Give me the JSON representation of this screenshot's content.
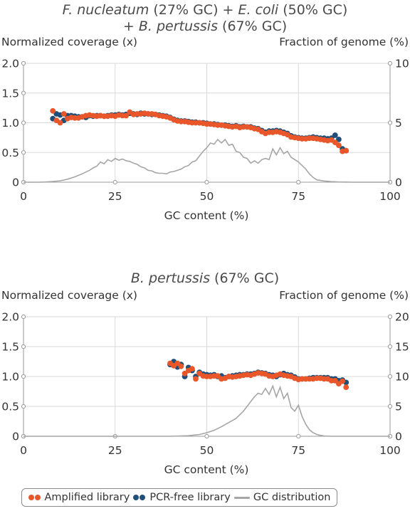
{
  "colors": {
    "amplified": "#e8562a",
    "pcr_free": "#1f4e79",
    "gc_distribution": "#a6a6a6",
    "grid": "#d9d9d9",
    "axis": "#9a9a9a"
  },
  "chart_data": [
    {
      "type": "scatter",
      "title_line1_parts": [
        {
          "text": "F. nucleatum",
          "italic": true
        },
        {
          "text": " (27% GC) + ",
          "italic": false
        },
        {
          "text": "E. coli",
          "italic": true
        },
        {
          "text": " (50% GC)",
          "italic": false
        }
      ],
      "title_line2_parts": [
        {
          "text": "+ ",
          "italic": false
        },
        {
          "text": "B. pertussis",
          "italic": true
        },
        {
          "text": " (67% GC)",
          "italic": false
        }
      ],
      "ylabel_left": "Normalized coverage (x)",
      "ylabel_right": "Fraction of genome (%)",
      "xlabel": "GC content (%)",
      "xlim": [
        0,
        100
      ],
      "x_ticks": [
        "0",
        "25",
        "50",
        "75",
        "100"
      ],
      "ylim_left": [
        0,
        2.0
      ],
      "y_ticks_left": [
        "0",
        "0.5",
        "1.0",
        "1.5",
        "2.0"
      ],
      "ylim_right": [
        0,
        10
      ],
      "y_ticks_right": [
        "0",
        "5",
        "10"
      ],
      "grid": true,
      "series": [
        {
          "name": "PCR-free library",
          "x": [
            8,
            9,
            10,
            11,
            12,
            13,
            14,
            15,
            16,
            17,
            18,
            19,
            20,
            21,
            22,
            23,
            24,
            25,
            26,
            27,
            28,
            29,
            30,
            31,
            32,
            33,
            34,
            35,
            36,
            37,
            38,
            39,
            40,
            41,
            42,
            43,
            44,
            45,
            46,
            47,
            48,
            49,
            50,
            51,
            52,
            53,
            54,
            55,
            56,
            57,
            58,
            59,
            60,
            61,
            62,
            63,
            64,
            65,
            66,
            67,
            68,
            69,
            70,
            71,
            72,
            73,
            74,
            75,
            76,
            77,
            78,
            79,
            80,
            81,
            82,
            83,
            84,
            85,
            86,
            87,
            88
          ],
          "y": [
            1.07,
            1.15,
            1.13,
            1.04,
            1.12,
            1.12,
            1.11,
            1.1,
            1.1,
            1.09,
            1.12,
            1.11,
            1.12,
            1.12,
            1.11,
            1.12,
            1.13,
            1.13,
            1.14,
            1.13,
            1.14,
            1.16,
            1.15,
            1.14,
            1.16,
            1.15,
            1.15,
            1.14,
            1.14,
            1.13,
            1.12,
            1.11,
            1.09,
            1.06,
            1.04,
            1.03,
            1.03,
            1.02,
            1.01,
            1.01,
            1.0,
            1.0,
            0.99,
            0.98,
            0.98,
            0.97,
            0.96,
            0.96,
            0.95,
            0.94,
            0.95,
            0.93,
            0.94,
            0.93,
            0.93,
            0.91,
            0.9,
            0.87,
            0.84,
            0.86,
            0.86,
            0.87,
            0.86,
            0.84,
            0.82,
            0.78,
            0.76,
            0.75,
            0.74,
            0.74,
            0.75,
            0.76,
            0.75,
            0.74,
            0.74,
            0.73,
            0.74,
            0.79,
            0.72,
            0.56,
            0.53
          ]
        },
        {
          "name": "Amplified library",
          "x": [
            8,
            9,
            10,
            11,
            12,
            13,
            14,
            15,
            16,
            17,
            18,
            19,
            20,
            21,
            22,
            23,
            24,
            25,
            26,
            27,
            28,
            29,
            30,
            31,
            32,
            33,
            34,
            35,
            36,
            37,
            38,
            39,
            40,
            41,
            42,
            43,
            44,
            45,
            46,
            47,
            48,
            49,
            50,
            51,
            52,
            53,
            54,
            55,
            56,
            57,
            58,
            59,
            60,
            61,
            62,
            63,
            64,
            65,
            66,
            67,
            68,
            69,
            70,
            71,
            72,
            73,
            74,
            75,
            76,
            77,
            78,
            79,
            80,
            81,
            82,
            83,
            84,
            85,
            86,
            87,
            88
          ],
          "y": [
            1.2,
            1.04,
            1.0,
            1.15,
            1.07,
            1.09,
            1.08,
            1.08,
            1.1,
            1.12,
            1.13,
            1.12,
            1.11,
            1.12,
            1.11,
            1.11,
            1.12,
            1.11,
            1.13,
            1.12,
            1.12,
            1.18,
            1.14,
            1.15,
            1.15,
            1.16,
            1.15,
            1.15,
            1.14,
            1.12,
            1.11,
            1.1,
            1.08,
            1.05,
            1.03,
            1.02,
            1.02,
            1.01,
            1.0,
            1.0,
            1.0,
            0.99,
            0.98,
            0.98,
            0.97,
            0.96,
            0.96,
            0.95,
            0.94,
            0.93,
            0.94,
            0.92,
            0.93,
            0.93,
            0.92,
            0.9,
            0.89,
            0.85,
            0.82,
            0.84,
            0.84,
            0.85,
            0.84,
            0.82,
            0.8,
            0.76,
            0.75,
            0.74,
            0.73,
            0.73,
            0.74,
            0.74,
            0.73,
            0.72,
            0.71,
            0.7,
            0.71,
            0.67,
            0.62,
            0.52,
            0.53
          ]
        },
        {
          "name": "GC distribution",
          "axis": "right",
          "x": [
            0,
            2,
            4,
            6,
            8,
            10,
            12,
            14,
            16,
            18,
            19,
            20,
            21,
            22,
            23,
            24,
            25,
            26,
            27,
            28,
            29,
            30,
            31,
            32,
            33,
            34,
            35,
            36,
            37,
            38,
            39,
            40,
            41,
            42,
            43,
            44,
            45,
            46,
            47,
            48,
            49,
            50,
            51,
            52,
            53,
            54,
            55,
            56,
            57,
            58,
            59,
            60,
            61,
            62,
            63,
            64,
            65,
            66,
            67,
            68,
            69,
            70,
            71,
            72,
            73,
            74,
            75,
            76,
            77,
            78,
            79,
            80,
            82,
            84,
            86,
            88,
            90,
            92,
            95,
            100
          ],
          "y": [
            0,
            0,
            0,
            0.02,
            0.06,
            0.12,
            0.25,
            0.45,
            0.7,
            1.0,
            1.2,
            1.35,
            1.7,
            1.55,
            1.9,
            1.75,
            2.0,
            1.85,
            1.95,
            1.8,
            1.75,
            1.6,
            1.5,
            1.3,
            1.2,
            1.0,
            0.95,
            0.8,
            0.75,
            0.75,
            0.7,
            0.85,
            0.9,
            1.0,
            1.1,
            1.3,
            1.4,
            1.7,
            1.8,
            2.2,
            2.6,
            2.9,
            3.3,
            3.2,
            3.6,
            3.3,
            3.6,
            3.1,
            3.2,
            2.6,
            2.5,
            2.1,
            2.0,
            1.6,
            1.8,
            1.6,
            1.9,
            2.0,
            1.9,
            2.8,
            2.3,
            2.9,
            2.4,
            2.6,
            2.1,
            1.9,
            1.7,
            1.4,
            1.1,
            0.7,
            0.4,
            0.2,
            0.1,
            0.05,
            0.02,
            0.01,
            0,
            0,
            0,
            0
          ]
        }
      ]
    },
    {
      "type": "scatter",
      "title_line1_parts": [
        {
          "text": "B. pertussis",
          "italic": true
        },
        {
          "text": " (67% GC)",
          "italic": false
        }
      ],
      "title_line2_parts": [],
      "ylabel_left": "Normalized coverage (x)",
      "ylabel_right": "Fraction of genome (%)",
      "xlabel": "GC content (%)",
      "xlim": [
        0,
        100
      ],
      "x_ticks": [
        "0",
        "25",
        "50",
        "75",
        "100"
      ],
      "ylim_left": [
        0,
        2.0
      ],
      "y_ticks_left": [
        "0",
        "0.5",
        "1.0",
        "1.5",
        "2.0"
      ],
      "ylim_right": [
        0,
        20
      ],
      "y_ticks_right": [
        "0",
        "5",
        "10",
        "15",
        "20"
      ],
      "grid": true,
      "series": [
        {
          "name": "PCR-free library",
          "x": [
            40,
            41,
            42,
            43,
            44,
            45,
            46,
            47,
            48,
            49,
            50,
            51,
            52,
            53,
            54,
            55,
            56,
            57,
            58,
            59,
            60,
            61,
            62,
            63,
            64,
            65,
            66,
            67,
            68,
            69,
            70,
            71,
            72,
            73,
            74,
            75,
            76,
            77,
            78,
            79,
            80,
            81,
            82,
            83,
            84,
            85,
            86,
            87,
            88
          ],
          "y": [
            1.2,
            1.25,
            1.16,
            1.2,
            1.0,
            1.15,
            1.1,
            1.0,
            1.07,
            1.04,
            1.03,
            1.02,
            1.03,
            1.0,
            1.01,
            0.98,
            1.0,
            1.01,
            1.02,
            1.03,
            1.03,
            1.04,
            1.04,
            1.05,
            1.07,
            1.06,
            1.05,
            1.03,
            1.02,
            1.0,
            1.03,
            1.05,
            1.03,
            1.02,
            0.99,
            0.96,
            0.96,
            0.96,
            0.97,
            0.98,
            0.98,
            0.98,
            0.98,
            0.98,
            0.96,
            0.96,
            0.93,
            0.94,
            0.9
          ]
        },
        {
          "name": "Amplified library",
          "x": [
            40,
            41,
            42,
            43,
            44,
            45,
            46,
            47,
            48,
            49,
            50,
            51,
            52,
            53,
            54,
            55,
            56,
            57,
            58,
            59,
            60,
            61,
            62,
            63,
            64,
            65,
            66,
            67,
            68,
            69,
            70,
            71,
            72,
            73,
            74,
            75,
            76,
            77,
            78,
            79,
            80,
            81,
            82,
            83,
            84,
            85,
            86,
            87,
            88
          ],
          "y": [
            1.22,
            1.18,
            1.22,
            1.17,
            1.05,
            1.1,
            1.13,
            0.96,
            1.05,
            1.01,
            1.0,
            1.0,
            1.01,
            1.01,
            0.96,
            0.97,
            1.0,
            0.99,
            1.0,
            1.01,
            1.02,
            1.03,
            1.02,
            1.04,
            1.06,
            1.05,
            1.04,
            1.01,
            1.0,
            1.02,
            1.04,
            1.02,
            1.01,
            1.0,
            0.97,
            0.95,
            0.96,
            0.96,
            0.96,
            0.96,
            0.97,
            0.97,
            0.96,
            0.96,
            0.93,
            0.93,
            0.88,
            0.92,
            0.82
          ]
        },
        {
          "name": "GC distribution",
          "axis": "right",
          "x": [
            0,
            10,
            20,
            30,
            40,
            45,
            48,
            50,
            52,
            54,
            56,
            58,
            59,
            60,
            61,
            62,
            63,
            64,
            65,
            66,
            67,
            68,
            69,
            70,
            71,
            72,
            73,
            74,
            75,
            76,
            77,
            78,
            79,
            80,
            81,
            82,
            84,
            86,
            88,
            90,
            95,
            100
          ],
          "y": [
            0,
            0,
            0,
            0,
            0,
            0.1,
            0.3,
            0.6,
            1.0,
            1.6,
            2.3,
            3.0,
            3.6,
            4.2,
            5.0,
            5.8,
            6.6,
            7.2,
            7.0,
            8.0,
            7.0,
            8.4,
            6.6,
            8.2,
            6.3,
            7.2,
            4.8,
            4.2,
            5.2,
            3.3,
            2.0,
            1.1,
            0.6,
            0.3,
            0.15,
            0.05,
            0,
            0,
            0,
            0,
            0,
            0
          ]
        }
      ]
    }
  ],
  "legend": {
    "items": [
      {
        "label": "Amplified library"
      },
      {
        "label": "PCR-free library"
      },
      {
        "label": "GC distribution"
      }
    ]
  }
}
